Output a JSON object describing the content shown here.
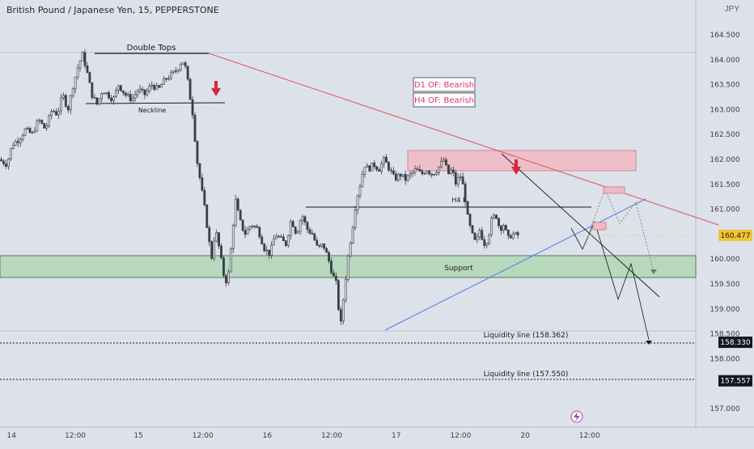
{
  "header": {
    "title": "British Pound / Japanese Yen, 15, PEPPERSTONE",
    "currency": "JPY"
  },
  "chart_data": {
    "type": "candlestick",
    "ylim": [
      156.6,
      165.5
    ],
    "xlim": [
      0,
      100
    ],
    "grid": false,
    "y_ticks": [
      {
        "value": 164.5,
        "label": "164.500"
      },
      {
        "value": 164.0,
        "label": "164.000"
      },
      {
        "value": 163.5,
        "label": "163.500"
      },
      {
        "value": 163.0,
        "label": "163.000"
      },
      {
        "value": 162.5,
        "label": "162.500"
      },
      {
        "value": 162.0,
        "label": "162.000"
      },
      {
        "value": 161.5,
        "label": "161.500"
      },
      {
        "value": 161.0,
        "label": "161.000"
      },
      {
        "value": 160.0,
        "label": "160.000"
      },
      {
        "value": 159.5,
        "label": "159.500"
      },
      {
        "value": 159.0,
        "label": "159.000"
      },
      {
        "value": 158.5,
        "label": "158.500"
      },
      {
        "value": 158.0,
        "label": "158.000"
      },
      {
        "value": 157.0,
        "label": "157.000"
      }
    ],
    "x_ticks": [
      {
        "t": 1,
        "label": "14"
      },
      {
        "t": 10.6,
        "label": "12:00"
      },
      {
        "t": 20.1,
        "label": "15"
      },
      {
        "t": 29.8,
        "label": "12:00"
      },
      {
        "t": 39.5,
        "label": "16"
      },
      {
        "t": 49.2,
        "label": "12:00"
      },
      {
        "t": 58.9,
        "label": "17"
      },
      {
        "t": 68.6,
        "label": "12:00"
      },
      {
        "t": 78.3,
        "label": "20"
      },
      {
        "t": 88,
        "label": "12:00"
      }
    ],
    "price_labels": [
      {
        "value": 160.477,
        "label": "160.477",
        "bg": "#f2c530",
        "color": "#1a1a1a"
      },
      {
        "value": 158.33,
        "label": "158.330",
        "bg": "#131722",
        "color": "#ffffff"
      },
      {
        "value": 157.557,
        "label": "157.557",
        "bg": "#131722",
        "color": "#ffffff"
      }
    ],
    "price_path": [
      [
        0,
        162.0
      ],
      [
        1.2,
        161.9
      ],
      [
        2,
        162.3
      ],
      [
        3,
        162.4
      ],
      [
        4,
        162.6
      ],
      [
        5,
        162.5
      ],
      [
        6,
        162.8
      ],
      [
        7,
        162.6
      ],
      [
        8,
        163.0
      ],
      [
        8.8,
        162.9
      ],
      [
        9.6,
        163.3
      ],
      [
        10.4,
        163.0
      ],
      [
        11.2,
        163.5
      ],
      [
        12,
        163.9
      ],
      [
        12.6,
        164.1
      ],
      [
        13.2,
        163.8
      ],
      [
        14,
        163.3
      ],
      [
        14.8,
        163.1
      ],
      [
        15.6,
        163.4
      ],
      [
        16.4,
        163.3
      ],
      [
        17.2,
        163.2
      ],
      [
        18,
        163.5
      ],
      [
        19,
        163.3
      ],
      [
        20,
        163.2
      ],
      [
        21,
        163.4
      ],
      [
        22,
        163.3
      ],
      [
        23,
        163.5
      ],
      [
        24,
        163.4
      ],
      [
        25,
        163.6
      ],
      [
        26,
        163.7
      ],
      [
        26.8,
        163.8
      ],
      [
        27.6,
        164.0
      ],
      [
        28.2,
        163.8
      ],
      [
        28.6,
        163.4
      ],
      [
        29.2,
        162.9
      ],
      [
        29.8,
        162.0
      ],
      [
        30.4,
        161.5
      ],
      [
        31,
        161.0
      ],
      [
        31.6,
        160.4
      ],
      [
        32,
        160.0
      ],
      [
        32.6,
        160.6
      ],
      [
        33.2,
        160.2
      ],
      [
        33.8,
        159.7
      ],
      [
        34.4,
        159.5
      ],
      [
        35,
        160.3
      ],
      [
        35.6,
        161.2
      ],
      [
        36.2,
        160.8
      ],
      [
        37,
        160.5
      ],
      [
        38,
        160.7
      ],
      [
        39,
        160.6
      ],
      [
        40,
        160.2
      ],
      [
        40.8,
        160.1
      ],
      [
        41.6,
        160.5
      ],
      [
        42.4,
        160.4
      ],
      [
        43.2,
        160.3
      ],
      [
        44,
        160.8
      ],
      [
        44.8,
        160.5
      ],
      [
        45.6,
        160.9
      ],
      [
        46.4,
        160.6
      ],
      [
        47.2,
        160.5
      ],
      [
        48,
        160.2
      ],
      [
        48.8,
        160.3
      ],
      [
        49.6,
        160.0
      ],
      [
        50.2,
        159.7
      ],
      [
        50.8,
        159.5
      ],
      [
        51.4,
        158.6
      ],
      [
        52,
        159.4
      ],
      [
        52.6,
        160.1
      ],
      [
        53.2,
        160.6
      ],
      [
        53.8,
        161.2
      ],
      [
        54.4,
        161.5
      ],
      [
        55,
        161.9
      ],
      [
        55.6,
        161.8
      ],
      [
        56.4,
        161.9
      ],
      [
        57.2,
        161.8
      ],
      [
        58,
        162.0
      ],
      [
        58.8,
        161.8
      ],
      [
        59.6,
        161.6
      ],
      [
        60.4,
        161.7
      ],
      [
        61.2,
        161.6
      ],
      [
        62,
        161.7
      ],
      [
        62.8,
        161.8
      ],
      [
        63.6,
        161.7
      ],
      [
        64.4,
        161.8
      ],
      [
        65.2,
        161.7
      ],
      [
        66,
        161.8
      ],
      [
        67,
        162.0
      ],
      [
        67.6,
        161.7
      ],
      [
        68.2,
        161.8
      ],
      [
        68.8,
        161.5
      ],
      [
        69.4,
        161.7
      ],
      [
        70,
        161.4
      ],
      [
        70.6,
        160.8
      ],
      [
        71.2,
        160.5
      ],
      [
        71.8,
        160.3
      ],
      [
        72.4,
        160.6
      ],
      [
        73,
        160.3
      ],
      [
        73.6,
        160.4
      ],
      [
        74.2,
        160.8
      ],
      [
        74.8,
        160.9
      ],
      [
        75.4,
        160.6
      ],
      [
        76,
        160.7
      ],
      [
        76.6,
        160.4
      ],
      [
        77.2,
        160.5
      ],
      [
        77.8,
        160.48
      ]
    ],
    "annotations": {
      "double_tops_label": "Double Tops",
      "neckline_label": "Neckline",
      "h4r_label": "H4 R",
      "support_label": "Support",
      "d1_label": "D1 OF: Bearish",
      "h4_label": "H4 OF: Bearish",
      "liquidity_1_label": "Liquidity line (158.362)",
      "liquidity_2_label": "Liquidity line (157.550)"
    }
  },
  "colors": {
    "background": "#dde1ea",
    "candle_line": "#3b3d46",
    "support_fill": "#a9d4ad",
    "support_border": "#2e6b3a",
    "supply_fill": "#f1b9c3",
    "supply_border": "#c77585",
    "trendline_red": "#e0505e",
    "trendline_blue": "#4b79e8",
    "arrow_red": "#d4283a",
    "text_pink": "#e0336b"
  }
}
